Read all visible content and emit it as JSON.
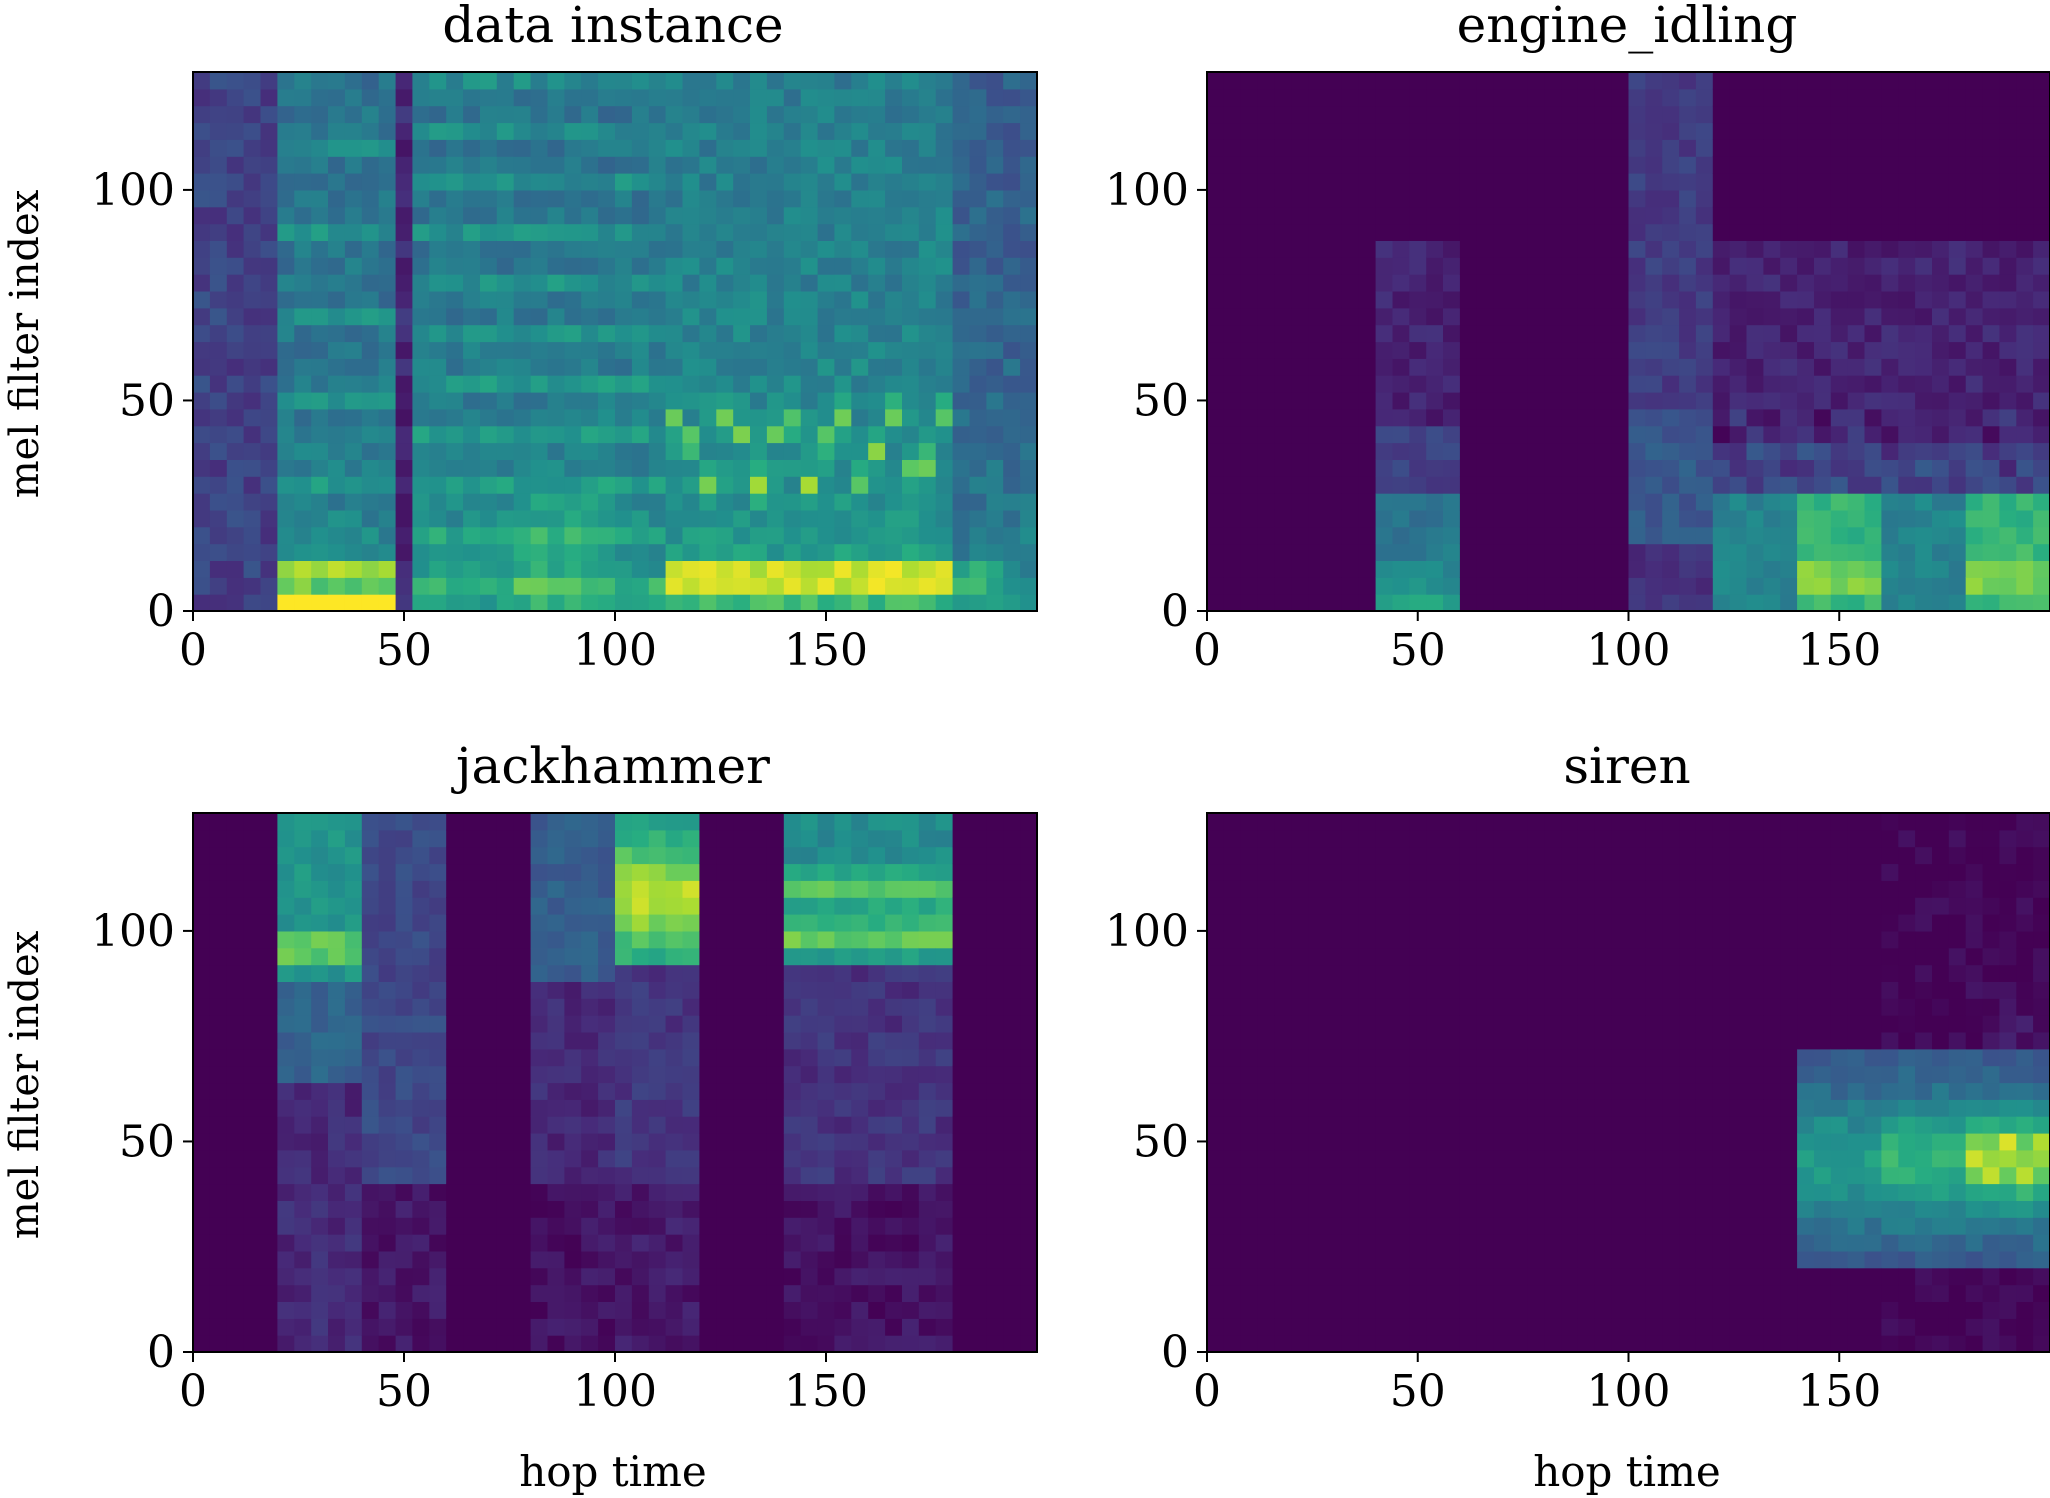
{
  "figure": {
    "colormap": "viridis",
    "colors": {
      "low": "#440154",
      "mid_low": "#3b528b",
      "mid": "#21918c",
      "mid_high": "#5ec962",
      "high": "#fde725"
    }
  },
  "chart_data": [
    {
      "type": "heatmap",
      "title": "data instance",
      "xlabel": "",
      "ylabel": "mel filter index",
      "xlim": [
        0,
        200
      ],
      "ylim": [
        0,
        128
      ],
      "xticks": [
        0,
        50,
        100,
        150
      ],
      "yticks": [
        0,
        50,
        100
      ],
      "pattern": "data_instance",
      "description_hint": "dense spectrogram with siren-like oscillation 30-48 and strong band near 8 after frame 112"
    },
    {
      "type": "heatmap",
      "title": "engine_idling",
      "xlabel": "",
      "ylabel": "",
      "xlim": [
        0,
        200
      ],
      "ylim": [
        0,
        128
      ],
      "xticks": [
        0,
        50,
        100,
        150
      ],
      "yticks": [
        0,
        50,
        100
      ],
      "pattern": "engine_idling"
    },
    {
      "type": "heatmap",
      "title": "jackhammer",
      "xlabel": "hop time",
      "ylabel": "mel filter index",
      "xlim": [
        0,
        200
      ],
      "ylim": [
        0,
        128
      ],
      "xticks": [
        0,
        50,
        100,
        150
      ],
      "yticks": [
        0,
        50,
        100
      ],
      "pattern": "jackhammer"
    },
    {
      "type": "heatmap",
      "title": "siren",
      "xlabel": "hop time",
      "ylabel": "",
      "xlim": [
        0,
        200
      ],
      "ylim": [
        0,
        128
      ],
      "xticks": [
        0,
        50,
        100,
        150
      ],
      "yticks": [
        0,
        50,
        100
      ],
      "pattern": "siren"
    }
  ]
}
